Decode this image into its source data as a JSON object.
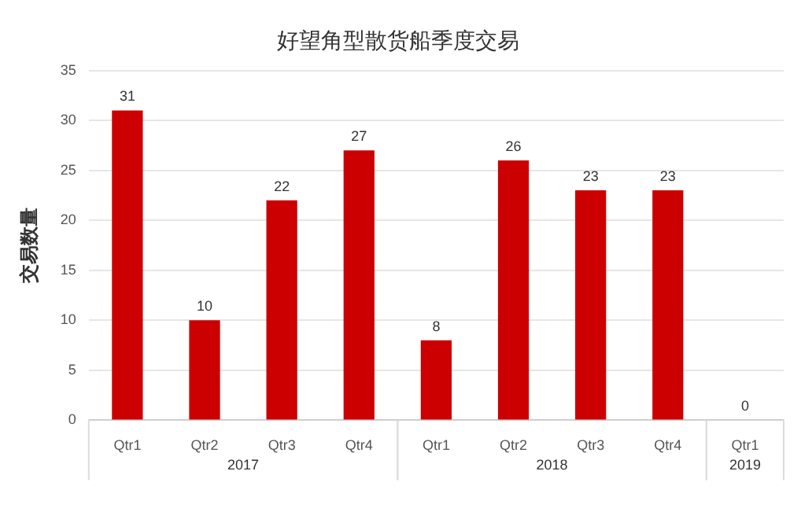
{
  "chart_data": {
    "type": "bar",
    "title": "好望角型散货船季度交易",
    "ylabel": "交易数量",
    "categories": [
      "Qtr1",
      "Qtr2",
      "Qtr3",
      "Qtr4",
      "Qtr1",
      "Qtr2",
      "Qtr3",
      "Qtr4",
      "Qtr1"
    ],
    "values": [
      31,
      10,
      22,
      27,
      8,
      26,
      23,
      23,
      0
    ],
    "color": "#cc0000",
    "ylim": [
      0,
      35
    ],
    "yticks": [
      0,
      5,
      10,
      15,
      20,
      25,
      30,
      35
    ],
    "grid": "y",
    "data_labels": true,
    "legend": false,
    "annotations": [
      "2017",
      "2018",
      "2019"
    ]
  }
}
